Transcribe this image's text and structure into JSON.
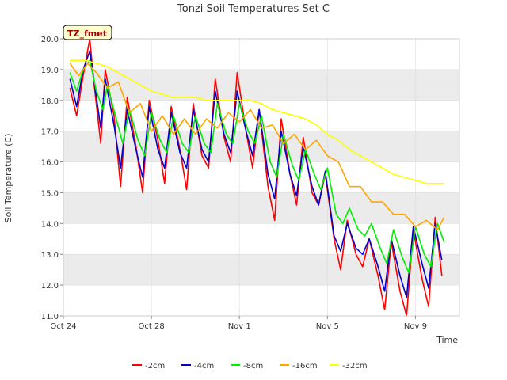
{
  "chart_data": {
    "type": "line",
    "title": "Tonzi Soil Temperatures Set C",
    "xlabel": "Time",
    "ylabel": "Soil Temperature (C)",
    "annotation": "TZ_fmet",
    "x_unit": "days since Oct 24",
    "xlim": [
      0,
      18
    ],
    "ylim": [
      11.0,
      20.0
    ],
    "yticks": [
      "11.0",
      "12.0",
      "13.0",
      "14.0",
      "15.0",
      "16.0",
      "17.0",
      "18.0",
      "19.0",
      "20.0"
    ],
    "xticks": [
      {
        "x": 0,
        "label": "Oct 24"
      },
      {
        "x": 4,
        "label": "Oct 28"
      },
      {
        "x": 8,
        "label": "Nov 1"
      },
      {
        "x": 12,
        "label": "Nov 5"
      },
      {
        "x": 16,
        "label": "Nov 9"
      }
    ],
    "grid": true,
    "band_fill": "#ebebeb",
    "legend_position": "bottom",
    "series": [
      {
        "name": "-2cm",
        "color": "#ff0000",
        "x": [
          0.3,
          0.6,
          0.9,
          1.2,
          1.4,
          1.7,
          1.9,
          2.3,
          2.6,
          2.9,
          3.3,
          3.6,
          3.9,
          4.3,
          4.6,
          4.9,
          5.3,
          5.6,
          5.9,
          6.3,
          6.6,
          6.9,
          7.3,
          7.6,
          7.9,
          8.3,
          8.6,
          8.9,
          9.3,
          9.6,
          9.9,
          10.3,
          10.6,
          10.9,
          11.3,
          11.6,
          11.9,
          12.3,
          12.6,
          12.9,
          13.3,
          13.6,
          13.9,
          14.3,
          14.6,
          14.9,
          15.3,
          15.6,
          15.9,
          16.3,
          16.6,
          16.9,
          17.2
        ],
        "y": [
          18.4,
          17.5,
          18.8,
          20.0,
          18.5,
          16.6,
          19.0,
          17.5,
          15.2,
          18.1,
          16.5,
          15.0,
          18.0,
          16.7,
          15.3,
          17.8,
          16.4,
          15.1,
          17.9,
          16.2,
          15.8,
          18.7,
          16.8,
          16.0,
          18.9,
          17.0,
          15.8,
          17.7,
          15.2,
          14.1,
          17.4,
          15.6,
          14.6,
          16.8,
          15.0,
          14.6,
          15.6,
          13.5,
          12.5,
          14.1,
          13.0,
          12.6,
          13.5,
          12.3,
          11.2,
          13.4,
          11.8,
          11.0,
          13.8,
          12.2,
          11.3,
          14.2,
          12.3
        ]
      },
      {
        "name": "-4cm",
        "color": "#0000cc",
        "x": [
          0.3,
          0.6,
          0.9,
          1.2,
          1.4,
          1.7,
          1.9,
          2.3,
          2.6,
          2.9,
          3.3,
          3.6,
          3.9,
          4.3,
          4.6,
          4.9,
          5.3,
          5.6,
          5.9,
          6.3,
          6.6,
          6.9,
          7.3,
          7.6,
          7.9,
          8.3,
          8.6,
          8.9,
          9.3,
          9.6,
          9.9,
          10.3,
          10.6,
          10.9,
          11.3,
          11.6,
          11.9,
          12.3,
          12.6,
          12.9,
          13.3,
          13.6,
          13.9,
          14.3,
          14.6,
          14.9,
          15.3,
          15.6,
          15.9,
          16.3,
          16.6,
          16.9,
          17.2
        ],
        "y": [
          18.7,
          17.8,
          19.0,
          19.6,
          18.6,
          17.1,
          18.7,
          17.2,
          15.8,
          17.7,
          16.4,
          15.5,
          17.8,
          16.4,
          15.8,
          17.6,
          16.3,
          15.8,
          17.7,
          16.4,
          16.0,
          18.3,
          16.9,
          16.3,
          18.3,
          17.0,
          16.2,
          17.7,
          15.6,
          14.8,
          17.0,
          15.6,
          14.9,
          16.5,
          15.2,
          14.6,
          15.7,
          13.6,
          13.1,
          14.0,
          13.2,
          13.0,
          13.5,
          12.6,
          11.8,
          13.5,
          12.3,
          11.6,
          13.9,
          12.7,
          11.9,
          14.0,
          12.8
        ]
      },
      {
        "name": "-8cm",
        "color": "#00ee00",
        "x": [
          0.3,
          0.6,
          0.9,
          1.2,
          1.5,
          1.8,
          2.0,
          2.4,
          2.7,
          3.0,
          3.4,
          3.7,
          4.0,
          4.4,
          4.7,
          5.0,
          5.4,
          5.7,
          6.0,
          6.4,
          6.7,
          7.0,
          7.4,
          7.7,
          8.0,
          8.4,
          8.7,
          9.0,
          9.4,
          9.7,
          10.0,
          10.4,
          10.7,
          11.0,
          11.4,
          11.7,
          12.0,
          12.4,
          12.7,
          13.0,
          13.4,
          13.7,
          14.0,
          14.4,
          14.7,
          15.0,
          15.4,
          15.7,
          16.0,
          16.4,
          16.7,
          17.0,
          17.3
        ],
        "y": [
          18.9,
          18.3,
          19.0,
          19.3,
          18.3,
          17.7,
          18.5,
          17.4,
          16.6,
          17.7,
          16.7,
          16.2,
          17.6,
          16.7,
          16.3,
          17.5,
          16.6,
          16.3,
          17.5,
          16.6,
          16.3,
          17.9,
          16.9,
          16.6,
          17.9,
          17.0,
          16.6,
          17.5,
          16.0,
          15.5,
          16.9,
          15.9,
          15.4,
          16.4,
          15.6,
          15.1,
          15.8,
          14.3,
          14.0,
          14.5,
          13.8,
          13.6,
          14.0,
          13.2,
          12.7,
          13.8,
          12.9,
          12.4,
          13.9,
          13.0,
          12.6,
          14.0,
          13.4
        ]
      },
      {
        "name": "-16cm",
        "color": "#ffa500",
        "x": [
          0.3,
          0.7,
          1.1,
          1.5,
          2.0,
          2.5,
          3.0,
          3.5,
          4.0,
          4.5,
          5.0,
          5.5,
          6.0,
          6.5,
          7.0,
          7.5,
          8.0,
          8.5,
          9.0,
          9.5,
          10.0,
          10.5,
          11.0,
          11.5,
          12.0,
          12.5,
          13.0,
          13.5,
          14.0,
          14.5,
          15.0,
          15.5,
          16.0,
          16.5,
          17.0,
          17.3
        ],
        "y": [
          19.2,
          18.8,
          19.2,
          18.9,
          18.4,
          18.6,
          17.6,
          17.9,
          17.0,
          17.5,
          16.9,
          17.4,
          16.9,
          17.4,
          17.1,
          17.6,
          17.3,
          17.7,
          17.1,
          17.2,
          16.6,
          16.9,
          16.4,
          16.7,
          16.2,
          16.0,
          15.2,
          15.2,
          14.7,
          14.7,
          14.3,
          14.3,
          13.9,
          14.1,
          13.8,
          14.2
        ]
      },
      {
        "name": "-32cm",
        "color": "#ffff00",
        "x": [
          0.3,
          1.0,
          1.5,
          2.0,
          2.5,
          3.0,
          3.5,
          4.0,
          4.5,
          5.0,
          5.5,
          6.0,
          6.5,
          7.0,
          7.5,
          8.0,
          8.5,
          9.0,
          9.5,
          10.0,
          10.5,
          11.0,
          11.5,
          12.0,
          12.5,
          13.0,
          13.5,
          14.0,
          14.5,
          15.0,
          15.5,
          16.0,
          16.5,
          17.0,
          17.3
        ],
        "y": [
          19.3,
          19.3,
          19.2,
          19.1,
          18.9,
          18.7,
          18.5,
          18.3,
          18.2,
          18.1,
          18.1,
          18.1,
          18.0,
          18.0,
          18.0,
          18.0,
          18.0,
          17.9,
          17.7,
          17.6,
          17.5,
          17.4,
          17.2,
          16.9,
          16.7,
          16.4,
          16.2,
          16.0,
          15.8,
          15.6,
          15.5,
          15.4,
          15.3,
          15.3,
          15.3
        ]
      }
    ]
  }
}
